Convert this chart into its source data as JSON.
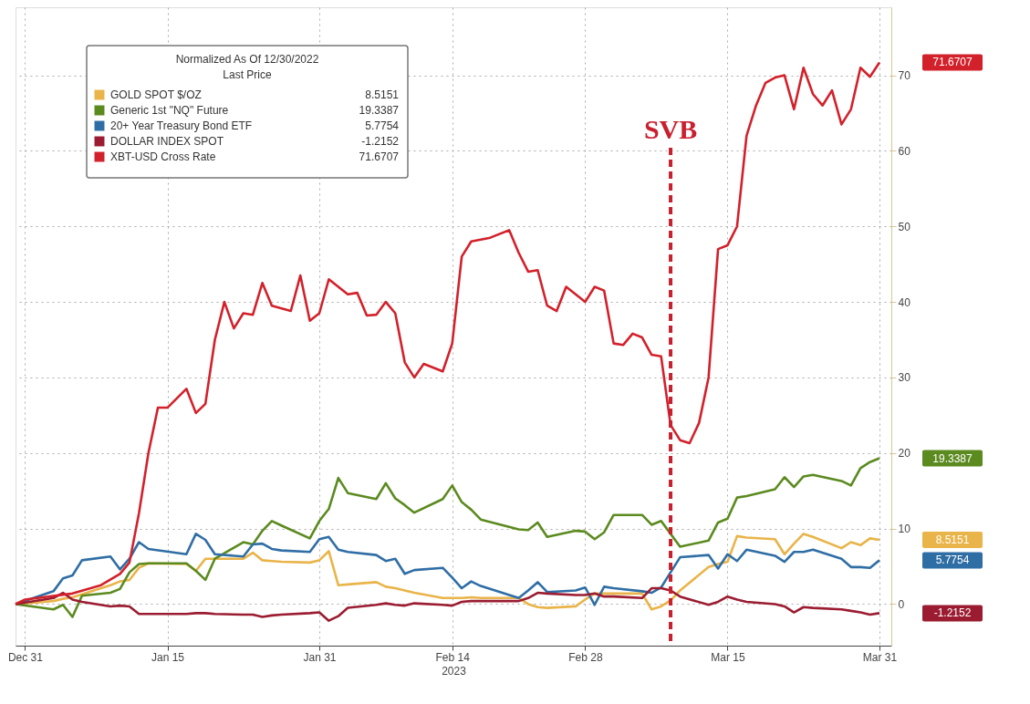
{
  "chart_data": {
    "type": "line",
    "xlabel": "2023",
    "legend_title": "Normalized As Of 12/30/2022\nLast Price",
    "legend": "top left",
    "grid": true,
    "line_style": "solid",
    "marker": "none",
    "xlim": [
      "2022-12-30",
      "2023-04-01T06:00"
    ],
    "xticks": [
      {
        "value": "2022-12-31",
        "label": "Dec 31"
      },
      {
        "value": "2023-01-15",
        "label": "Jan 15"
      },
      {
        "value": "2023-01-31",
        "label": "Jan 31"
      },
      {
        "value": "2023-02-14",
        "label": "Feb 14"
      },
      {
        "value": "2023-02-28",
        "label": "Feb 28"
      },
      {
        "value": "2023-03-15",
        "label": "Mar 15"
      },
      {
        "value": "2023-03-31",
        "label": "Mar 31"
      }
    ],
    "ylim": [
      -5.5,
      79
    ],
    "yticks": [
      0,
      10,
      20,
      30,
      40,
      50,
      60,
      70
    ],
    "ref_lines": [
      {
        "axis": "x",
        "value": "2023-03-09",
        "label": "SVB",
        "color": "#c8202f",
        "line_style": "dashed"
      }
    ],
    "annotations": [
      "8.5151",
      "19.3387",
      "5.7754",
      "-1.2152",
      "71.6707"
    ],
    "series": [
      {
        "name": "GOLD SPOT $/OZ",
        "color": "#e9b449",
        "x": [
          "2022-12-30",
          "2023-01-03",
          "2023-01-04",
          "2023-01-05",
          "2023-01-06",
          "2023-01-09",
          "2023-01-10",
          "2023-01-11",
          "2023-01-12",
          "2023-01-13",
          "2023-01-17",
          "2023-01-18",
          "2023-01-19",
          "2023-01-20",
          "2023-01-23",
          "2023-01-24",
          "2023-01-25",
          "2023-01-26",
          "2023-01-27",
          "2023-01-30",
          "2023-01-31",
          "2023-02-01",
          "2023-02-02",
          "2023-02-03",
          "2023-02-06",
          "2023-02-07",
          "2023-02-08",
          "2023-02-09",
          "2023-02-10",
          "2023-02-13",
          "2023-02-14",
          "2023-02-15",
          "2023-02-16",
          "2023-02-17",
          "2023-02-21",
          "2023-02-22",
          "2023-02-23",
          "2023-02-24",
          "2023-02-27",
          "2023-02-28",
          "2023-03-01",
          "2023-03-02",
          "2023-03-03",
          "2023-03-06",
          "2023-03-07",
          "2023-03-08",
          "2023-03-09",
          "2023-03-10",
          "2023-03-13",
          "2023-03-14",
          "2023-03-15",
          "2023-03-16",
          "2023-03-17",
          "2023-03-20",
          "2023-03-21",
          "2023-03-22",
          "2023-03-23",
          "2023-03-24",
          "2023-03-27",
          "2023-03-28",
          "2023-03-29",
          "2023-03-30",
          "2023-03-31"
        ],
        "values": [
          0,
          0.4,
          0.7,
          0.9,
          1.3,
          2.5,
          3,
          3.2,
          4.8,
          5.4,
          5.3,
          4.4,
          6,
          6,
          6,
          6.8,
          5.8,
          5.7,
          5.6,
          5.5,
          5.8,
          7,
          2.5,
          2.6,
          2.9,
          2.3,
          2.1,
          1.8,
          1.5,
          0.8,
          0.8,
          0.8,
          0.9,
          0.8,
          0.8,
          0,
          -0.4,
          -0.5,
          -0.3,
          0.6,
          1.4,
          1.4,
          1.4,
          1.4,
          -0.7,
          -0.3,
          0.5,
          1.8,
          4.9,
          5.3,
          5.6,
          9,
          8.8,
          8.6,
          6.6,
          8,
          9.3,
          8.9,
          7.4,
          8.2,
          7.8,
          8.7,
          8.5
        ]
      },
      {
        "name": "Generic 1st \"NQ\" Future",
        "color": "#5b8a1f",
        "x": [
          "2022-12-30",
          "2023-01-03",
          "2023-01-04",
          "2023-01-05",
          "2023-01-06",
          "2023-01-09",
          "2023-01-10",
          "2023-01-11",
          "2023-01-12",
          "2023-01-13",
          "2023-01-17",
          "2023-01-18",
          "2023-01-19",
          "2023-01-20",
          "2023-01-23",
          "2023-01-24",
          "2023-01-25",
          "2023-01-26",
          "2023-01-27",
          "2023-01-30",
          "2023-01-31",
          "2023-02-01",
          "2023-02-02",
          "2023-02-03",
          "2023-02-06",
          "2023-02-07",
          "2023-02-08",
          "2023-02-09",
          "2023-02-10",
          "2023-02-13",
          "2023-02-14",
          "2023-02-15",
          "2023-02-16",
          "2023-02-17",
          "2023-02-21",
          "2023-02-22",
          "2023-02-23",
          "2023-02-24",
          "2023-02-27",
          "2023-02-28",
          "2023-03-01",
          "2023-03-02",
          "2023-03-03",
          "2023-03-06",
          "2023-03-07",
          "2023-03-08",
          "2023-03-09",
          "2023-03-10",
          "2023-03-13",
          "2023-03-14",
          "2023-03-15",
          "2023-03-16",
          "2023-03-17",
          "2023-03-20",
          "2023-03-21",
          "2023-03-22",
          "2023-03-23",
          "2023-03-24",
          "2023-03-27",
          "2023-03-28",
          "2023-03-29",
          "2023-03-30",
          "2023-03-31"
        ],
        "values": [
          0,
          -0.7,
          -0.1,
          -1.7,
          1.1,
          1.5,
          2,
          4.2,
          5.3,
          5.4,
          5.4,
          4.4,
          3.2,
          6,
          8.2,
          7.9,
          9.7,
          11,
          10.4,
          8.7,
          11,
          12.6,
          16.7,
          14.7,
          13.9,
          16,
          14,
          13.1,
          12.1,
          13.9,
          15.7,
          13.5,
          12.5,
          11.2,
          9.9,
          9.8,
          10.8,
          8.9,
          9.7,
          9.6,
          8.6,
          9.5,
          11.8,
          11.8,
          10.5,
          11,
          9.3,
          7.6,
          8.4,
          10.8,
          11.3,
          14.1,
          14.3,
          15.2,
          16.8,
          15.5,
          16.9,
          17.1,
          16.3,
          15.7,
          18,
          18.8,
          19.3
        ]
      },
      {
        "name": "20+ Year Treasury Bond ETF",
        "color": "#2f6ea5",
        "x": [
          "2022-12-30",
          "2023-01-03",
          "2023-01-04",
          "2023-01-05",
          "2023-01-06",
          "2023-01-09",
          "2023-01-10",
          "2023-01-11",
          "2023-01-12",
          "2023-01-13",
          "2023-01-17",
          "2023-01-18",
          "2023-01-19",
          "2023-01-20",
          "2023-01-23",
          "2023-01-24",
          "2023-01-25",
          "2023-01-26",
          "2023-01-27",
          "2023-01-30",
          "2023-01-31",
          "2023-02-01",
          "2023-02-02",
          "2023-02-03",
          "2023-02-06",
          "2023-02-07",
          "2023-02-08",
          "2023-02-09",
          "2023-02-10",
          "2023-02-13",
          "2023-02-14",
          "2023-02-15",
          "2023-02-16",
          "2023-02-17",
          "2023-02-21",
          "2023-02-22",
          "2023-02-23",
          "2023-02-24",
          "2023-02-27",
          "2023-02-28",
          "2023-03-01",
          "2023-03-02",
          "2023-03-03",
          "2023-03-06",
          "2023-03-07",
          "2023-03-08",
          "2023-03-09",
          "2023-03-10",
          "2023-03-13",
          "2023-03-14",
          "2023-03-15",
          "2023-03-16",
          "2023-03-17",
          "2023-03-20",
          "2023-03-21",
          "2023-03-22",
          "2023-03-23",
          "2023-03-24",
          "2023-03-27",
          "2023-03-28",
          "2023-03-29",
          "2023-03-30",
          "2023-03-31"
        ],
        "values": [
          0,
          1.7,
          3.4,
          3.8,
          5.8,
          6.3,
          4.6,
          6,
          8.2,
          7.3,
          6.6,
          9.3,
          8.5,
          6.6,
          6.3,
          7.9,
          8,
          7.3,
          7.1,
          6.9,
          8.6,
          8.9,
          7.2,
          6.9,
          6.5,
          5.7,
          6,
          4,
          4.5,
          4.8,
          3.5,
          2.1,
          3,
          2.4,
          0.8,
          1.8,
          2.9,
          1.6,
          1.8,
          2.2,
          -0.1,
          2.3,
          2.1,
          1.7,
          1.5,
          2.2,
          4.2,
          6.2,
          6.5,
          4.7,
          6.6,
          5.7,
          7.2,
          6.4,
          5.6,
          6.9,
          6.9,
          7.2,
          6,
          4.9,
          4.9,
          4.8,
          5.8
        ]
      },
      {
        "name": "DOLLAR INDEX SPOT",
        "color": "#9b1c31",
        "x": [
          "2022-12-30",
          "2023-01-03",
          "2023-01-04",
          "2023-01-05",
          "2023-01-06",
          "2023-01-09",
          "2023-01-10",
          "2023-01-11",
          "2023-01-12",
          "2023-01-13",
          "2023-01-17",
          "2023-01-18",
          "2023-01-19",
          "2023-01-20",
          "2023-01-23",
          "2023-01-24",
          "2023-01-25",
          "2023-01-26",
          "2023-01-27",
          "2023-01-30",
          "2023-01-31",
          "2023-02-01",
          "2023-02-02",
          "2023-02-03",
          "2023-02-06",
          "2023-02-07",
          "2023-02-08",
          "2023-02-09",
          "2023-02-10",
          "2023-02-13",
          "2023-02-14",
          "2023-02-15",
          "2023-02-16",
          "2023-02-17",
          "2023-02-21",
          "2023-02-22",
          "2023-02-23",
          "2023-02-24",
          "2023-02-27",
          "2023-02-28",
          "2023-03-01",
          "2023-03-02",
          "2023-03-03",
          "2023-03-06",
          "2023-03-07",
          "2023-03-08",
          "2023-03-09",
          "2023-03-10",
          "2023-03-13",
          "2023-03-14",
          "2023-03-15",
          "2023-03-16",
          "2023-03-17",
          "2023-03-20",
          "2023-03-21",
          "2023-03-22",
          "2023-03-23",
          "2023-03-24",
          "2023-03-27",
          "2023-03-28",
          "2023-03-29",
          "2023-03-30",
          "2023-03-31"
        ],
        "values": [
          0,
          0.8,
          1.5,
          0.6,
          0.3,
          -0.3,
          -0.2,
          -0.3,
          -1.3,
          -1.3,
          -1.3,
          -1.2,
          -1.2,
          -1.3,
          -1.4,
          -1.4,
          -1.7,
          -1.5,
          -1.4,
          -1.2,
          -1.1,
          -2.2,
          -1.6,
          -0.5,
          -0.1,
          0.1,
          -0.1,
          -0.2,
          0.1,
          -0.1,
          -0.2,
          0.3,
          0.4,
          0.4,
          0.4,
          0.8,
          1.5,
          1.4,
          1.2,
          1.2,
          1.4,
          1,
          1,
          0.8,
          2.1,
          2.1,
          1.8,
          1,
          -0.1,
          0.3,
          1,
          0.6,
          0.3,
          0,
          -0.3,
          -1.1,
          -0.4,
          -0.5,
          -0.7,
          -0.9,
          -1.1,
          -1.4,
          -1.2
        ]
      },
      {
        "name": "XBT-USD Cross Rate",
        "color": "#d2212b",
        "x": [
          "2022-12-30",
          "2022-12-31",
          "2023-01-05",
          "2023-01-08",
          "2023-01-10",
          "2023-01-11",
          "2023-01-12",
          "2023-01-13",
          "2023-01-14",
          "2023-01-15",
          "2023-01-17",
          "2023-01-18",
          "2023-01-19",
          "2023-01-20",
          "2023-01-21",
          "2023-01-22",
          "2023-01-23",
          "2023-01-24",
          "2023-01-25",
          "2023-01-26",
          "2023-01-28",
          "2023-01-29",
          "2023-01-30",
          "2023-01-31",
          "2023-02-01",
          "2023-02-03",
          "2023-02-04",
          "2023-02-05",
          "2023-02-06",
          "2023-02-07",
          "2023-02-08",
          "2023-02-09",
          "2023-02-10",
          "2023-02-11",
          "2023-02-13",
          "2023-02-14",
          "2023-02-15",
          "2023-02-16",
          "2023-02-18",
          "2023-02-20",
          "2023-02-21",
          "2023-02-22",
          "2023-02-23",
          "2023-02-24",
          "2023-02-25",
          "2023-02-26",
          "2023-02-27",
          "2023-02-28",
          "2023-03-01",
          "2023-03-02",
          "2023-03-03",
          "2023-03-04",
          "2023-03-05",
          "2023-03-06",
          "2023-03-07",
          "2023-03-08",
          "2023-03-09",
          "2023-03-10",
          "2023-03-11",
          "2023-03-12",
          "2023-03-13",
          "2023-03-14",
          "2023-03-15",
          "2023-03-16",
          "2023-03-17",
          "2023-03-18",
          "2023-03-19",
          "2023-03-20",
          "2023-03-21",
          "2023-03-22",
          "2023-03-23",
          "2023-03-24",
          "2023-03-25",
          "2023-03-26",
          "2023-03-27",
          "2023-03-28",
          "2023-03-29",
          "2023-03-30",
          "2023-03-31"
        ],
        "values": [
          0,
          0.6,
          1.4,
          2.5,
          4,
          5.5,
          12,
          20,
          26,
          26,
          28.5,
          25.3,
          26.5,
          35,
          40,
          36.5,
          38.5,
          38.3,
          42.5,
          39.5,
          38.8,
          43.5,
          37.5,
          38.5,
          43,
          41,
          41.2,
          38.2,
          38.3,
          40,
          38.5,
          32,
          30,
          31.8,
          30.8,
          34.5,
          46,
          48,
          48.5,
          49.5,
          46.5,
          44,
          44.2,
          39.5,
          38.8,
          42,
          41,
          40,
          42,
          41.5,
          34.5,
          34.3,
          35.8,
          35.3,
          33,
          32.8,
          23.7,
          21.7,
          21.3,
          24,
          30,
          47,
          47.5,
          50,
          62,
          66,
          69,
          69.7,
          70,
          65.5,
          71,
          67.5,
          66,
          68,
          63.5,
          65.5,
          71,
          69.8,
          71.7
        ]
      }
    ]
  }
}
